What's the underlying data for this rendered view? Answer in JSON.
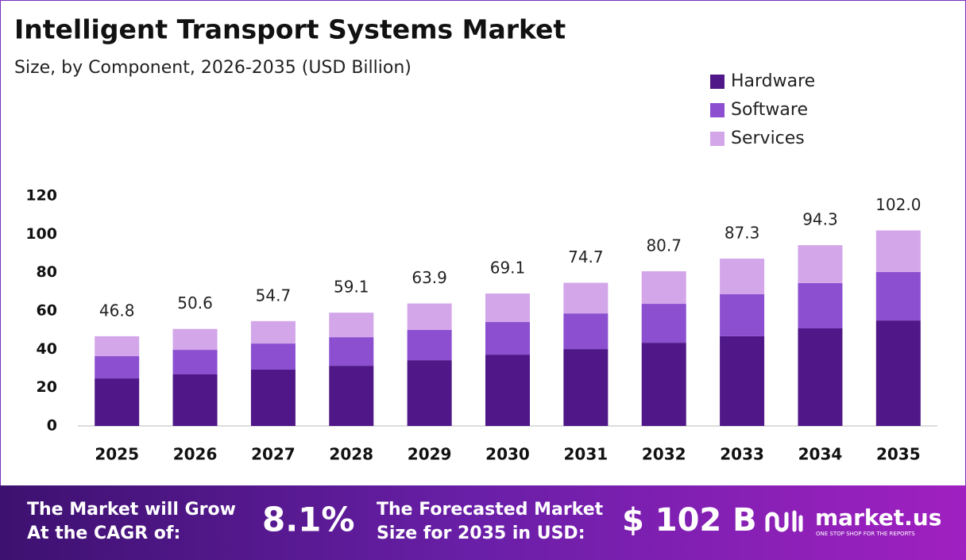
{
  "chart_data": {
    "type": "stacked_bar",
    "title": "Intelligent Transport Systems Market",
    "subtitle": "Size, by Component, 2026-2035 (USD Billion)",
    "categories": [
      "2025",
      "2026",
      "2027",
      "2028",
      "2029",
      "2030",
      "2031",
      "2032",
      "2033",
      "2034",
      "2035"
    ],
    "series": [
      {
        "name": "Hardware",
        "color": "#4f1787",
        "values": [
          24.8,
          26.9,
          29.4,
          31.4,
          34.3,
          37.2,
          40.1,
          43.4,
          46.8,
          50.9,
          55.0
        ]
      },
      {
        "name": "Software",
        "color": "#8b4fd0",
        "values": [
          11.6,
          12.8,
          13.6,
          14.9,
          15.8,
          17.0,
          18.6,
          20.3,
          21.9,
          23.6,
          25.3
        ]
      },
      {
        "name": "Services",
        "color": "#d3a6ea",
        "values": [
          10.4,
          10.9,
          11.7,
          12.8,
          13.8,
          14.9,
          16.0,
          17.0,
          18.6,
          19.8,
          21.7
        ]
      }
    ],
    "totals": [
      46.8,
      50.6,
      54.7,
      59.1,
      63.9,
      69.1,
      74.7,
      80.7,
      87.3,
      94.3,
      102.0
    ],
    "total_labels": [
      "46.8",
      "50.6",
      "54.7",
      "59.1",
      "63.9",
      "69.1",
      "74.7",
      "80.7",
      "87.3",
      "94.3",
      "102.0"
    ],
    "ylim": [
      0,
      120
    ],
    "yticks": [
      0,
      20,
      40,
      60,
      80,
      100,
      120
    ],
    "grid": false,
    "legend": "top-right"
  },
  "footer": {
    "cagr_text": [
      "The Market will Grow",
      "At the CAGR of:"
    ],
    "cagr_value": "8.1%",
    "forecast_text": [
      "The Forecasted Market",
      "Size for 2035 in USD:"
    ],
    "forecast_value": "$ 102 B",
    "logo": "market.us",
    "tagline": "ONE STOP SHOP FOR THE REPORTS"
  }
}
